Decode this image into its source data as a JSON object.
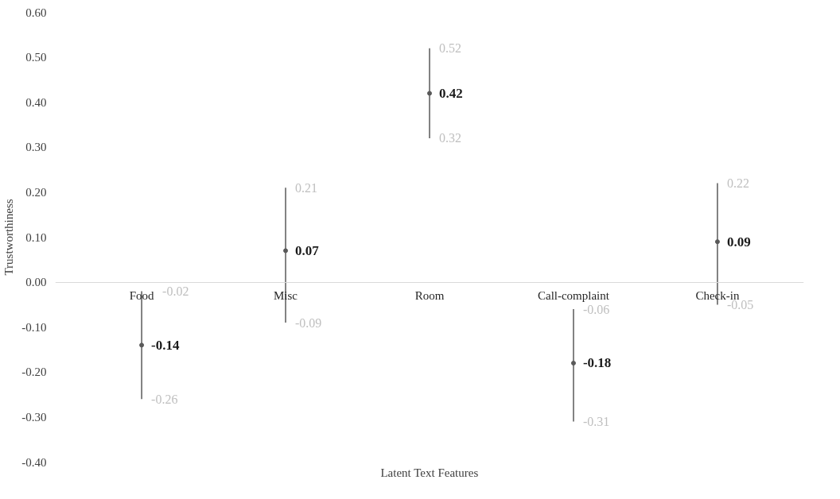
{
  "chart_data": {
    "type": "scatter",
    "marker": "circle",
    "xlabel": "Latent Text Features",
    "ylabel": "Trustworthiness",
    "categories": [
      "Food",
      "Misc",
      "Room",
      "Call-complaint",
      "Check-in"
    ],
    "series": [
      {
        "color": "#595959",
        "values": [
          -0.14,
          0.07,
          0.42,
          -0.18,
          0.09
        ],
        "errors": [
          [
            -0.26,
            -0.02
          ],
          [
            -0.09,
            0.21
          ],
          [
            0.32,
            0.52
          ],
          [
            -0.31,
            -0.06
          ],
          [
            -0.05,
            0.22
          ]
        ]
      }
    ],
    "data_labels": true,
    "grid": false,
    "annotations": [
      {
        "text": "-0.02",
        "x": "Food",
        "y": -0.02
      },
      {
        "text": "-0.26",
        "x": "Food",
        "y": -0.26
      },
      {
        "text": "0.21",
        "x": "Misc",
        "y": 0.21
      },
      {
        "text": "-0.09",
        "x": "Misc",
        "y": -0.09
      },
      {
        "text": "0.52",
        "x": "Room",
        "y": 0.52
      },
      {
        "text": "0.32",
        "x": "Room",
        "y": 0.32
      },
      {
        "text": "-0.06",
        "x": "Call-complaint",
        "y": -0.06
      },
      {
        "text": "-0.31",
        "x": "Call-complaint",
        "y": -0.31
      },
      {
        "text": "0.22",
        "x": "Check-in",
        "y": 0.22
      },
      {
        "text": "-0.05",
        "x": "Check-in",
        "y": -0.05
      }
    ],
    "ylim": [
      -0.4,
      0.6
    ],
    "yticks": [
      {
        "value": -0.4,
        "label": "-0.40"
      },
      {
        "value": -0.3,
        "label": "-0.30"
      },
      {
        "value": -0.2,
        "label": "-0.20"
      },
      {
        "value": -0.1,
        "label": "-0.10"
      },
      {
        "value": 0,
        "label": "0.00"
      },
      {
        "value": 0.1,
        "label": "0.10"
      },
      {
        "value": 0.2,
        "label": "0.20"
      },
      {
        "value": 0.3,
        "label": "0.30"
      },
      {
        "value": 0.4,
        "label": "0.40"
      },
      {
        "value": 0.5,
        "label": "0.50"
      },
      {
        "value": 0.6,
        "label": "0.60"
      }
    ]
  }
}
